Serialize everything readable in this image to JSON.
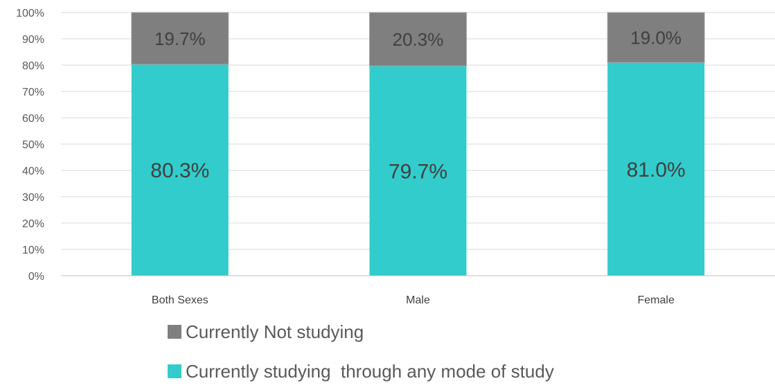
{
  "chart_data": {
    "type": "bar",
    "stacked": true,
    "percent_stacked": true,
    "categories": [
      "Both Sexes",
      "Male",
      "Female"
    ],
    "series": [
      {
        "name": "Currently studying  through any mode of study",
        "values": [
          80.3,
          79.7,
          81.0
        ],
        "labels": [
          "80.3%",
          "79.7%",
          "81.0%"
        ],
        "color": "#33CCCC"
      },
      {
        "name": "Currently Not studying",
        "values": [
          19.7,
          20.3,
          19.0
        ],
        "labels": [
          "19.7%",
          "20.3%",
          "19.0%"
        ],
        "color": "#7F7F7F"
      }
    ],
    "ylim": [
      0,
      100
    ],
    "yticks": [
      "0%",
      "10%",
      "20%",
      "30%",
      "40%",
      "50%",
      "60%",
      "70%",
      "80%",
      "90%",
      "100%"
    ],
    "grid": true,
    "legend_position": "bottom",
    "legend_order": [
      "Currently Not studying",
      "Currently studying  through any mode of study"
    ],
    "label_color": "#404040",
    "gridline_color": "#D9D9D9"
  }
}
